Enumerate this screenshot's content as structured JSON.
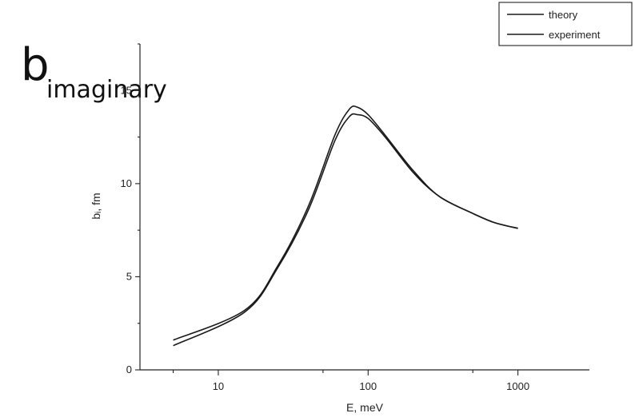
{
  "panel": {
    "letter": "b",
    "subscript": "imaginary"
  },
  "chart_data": {
    "type": "line",
    "xlabel": "E, meV",
    "ylabel": "bᵢ, fm",
    "xscale": "log",
    "xlim": [
      3,
      3000
    ],
    "ylim": [
      0,
      17.5
    ],
    "x_ticks": [
      {
        "value": 10,
        "label": "10"
      },
      {
        "value": 100,
        "label": "100"
      },
      {
        "value": 1000,
        "label": "1000"
      }
    ],
    "y_ticks": [
      {
        "value": 0,
        "label": "0"
      },
      {
        "value": 5,
        "label": "5"
      },
      {
        "value": 10,
        "label": "10"
      },
      {
        "value": 15,
        "label": "15"
      }
    ],
    "legend": {
      "position": "top-right"
    },
    "series": [
      {
        "name": "theory",
        "x": [
          5,
          15,
          25,
          40,
          60,
          75,
          85,
          100,
          130,
          200,
          300,
          500,
          700,
          1000
        ],
        "y": [
          1.6,
          3.2,
          5.6,
          8.8,
          12.6,
          14.0,
          14.1,
          13.7,
          12.6,
          10.7,
          9.3,
          8.4,
          7.9,
          7.6
        ]
      },
      {
        "name": "experiment",
        "x": [
          5,
          15,
          25,
          40,
          60,
          75,
          85,
          100,
          130,
          200,
          300,
          500,
          700,
          1000
        ],
        "y": [
          1.3,
          3.1,
          5.5,
          8.6,
          12.3,
          13.6,
          13.7,
          13.5,
          12.5,
          10.6,
          9.3,
          8.4,
          7.9,
          7.6
        ]
      }
    ]
  }
}
